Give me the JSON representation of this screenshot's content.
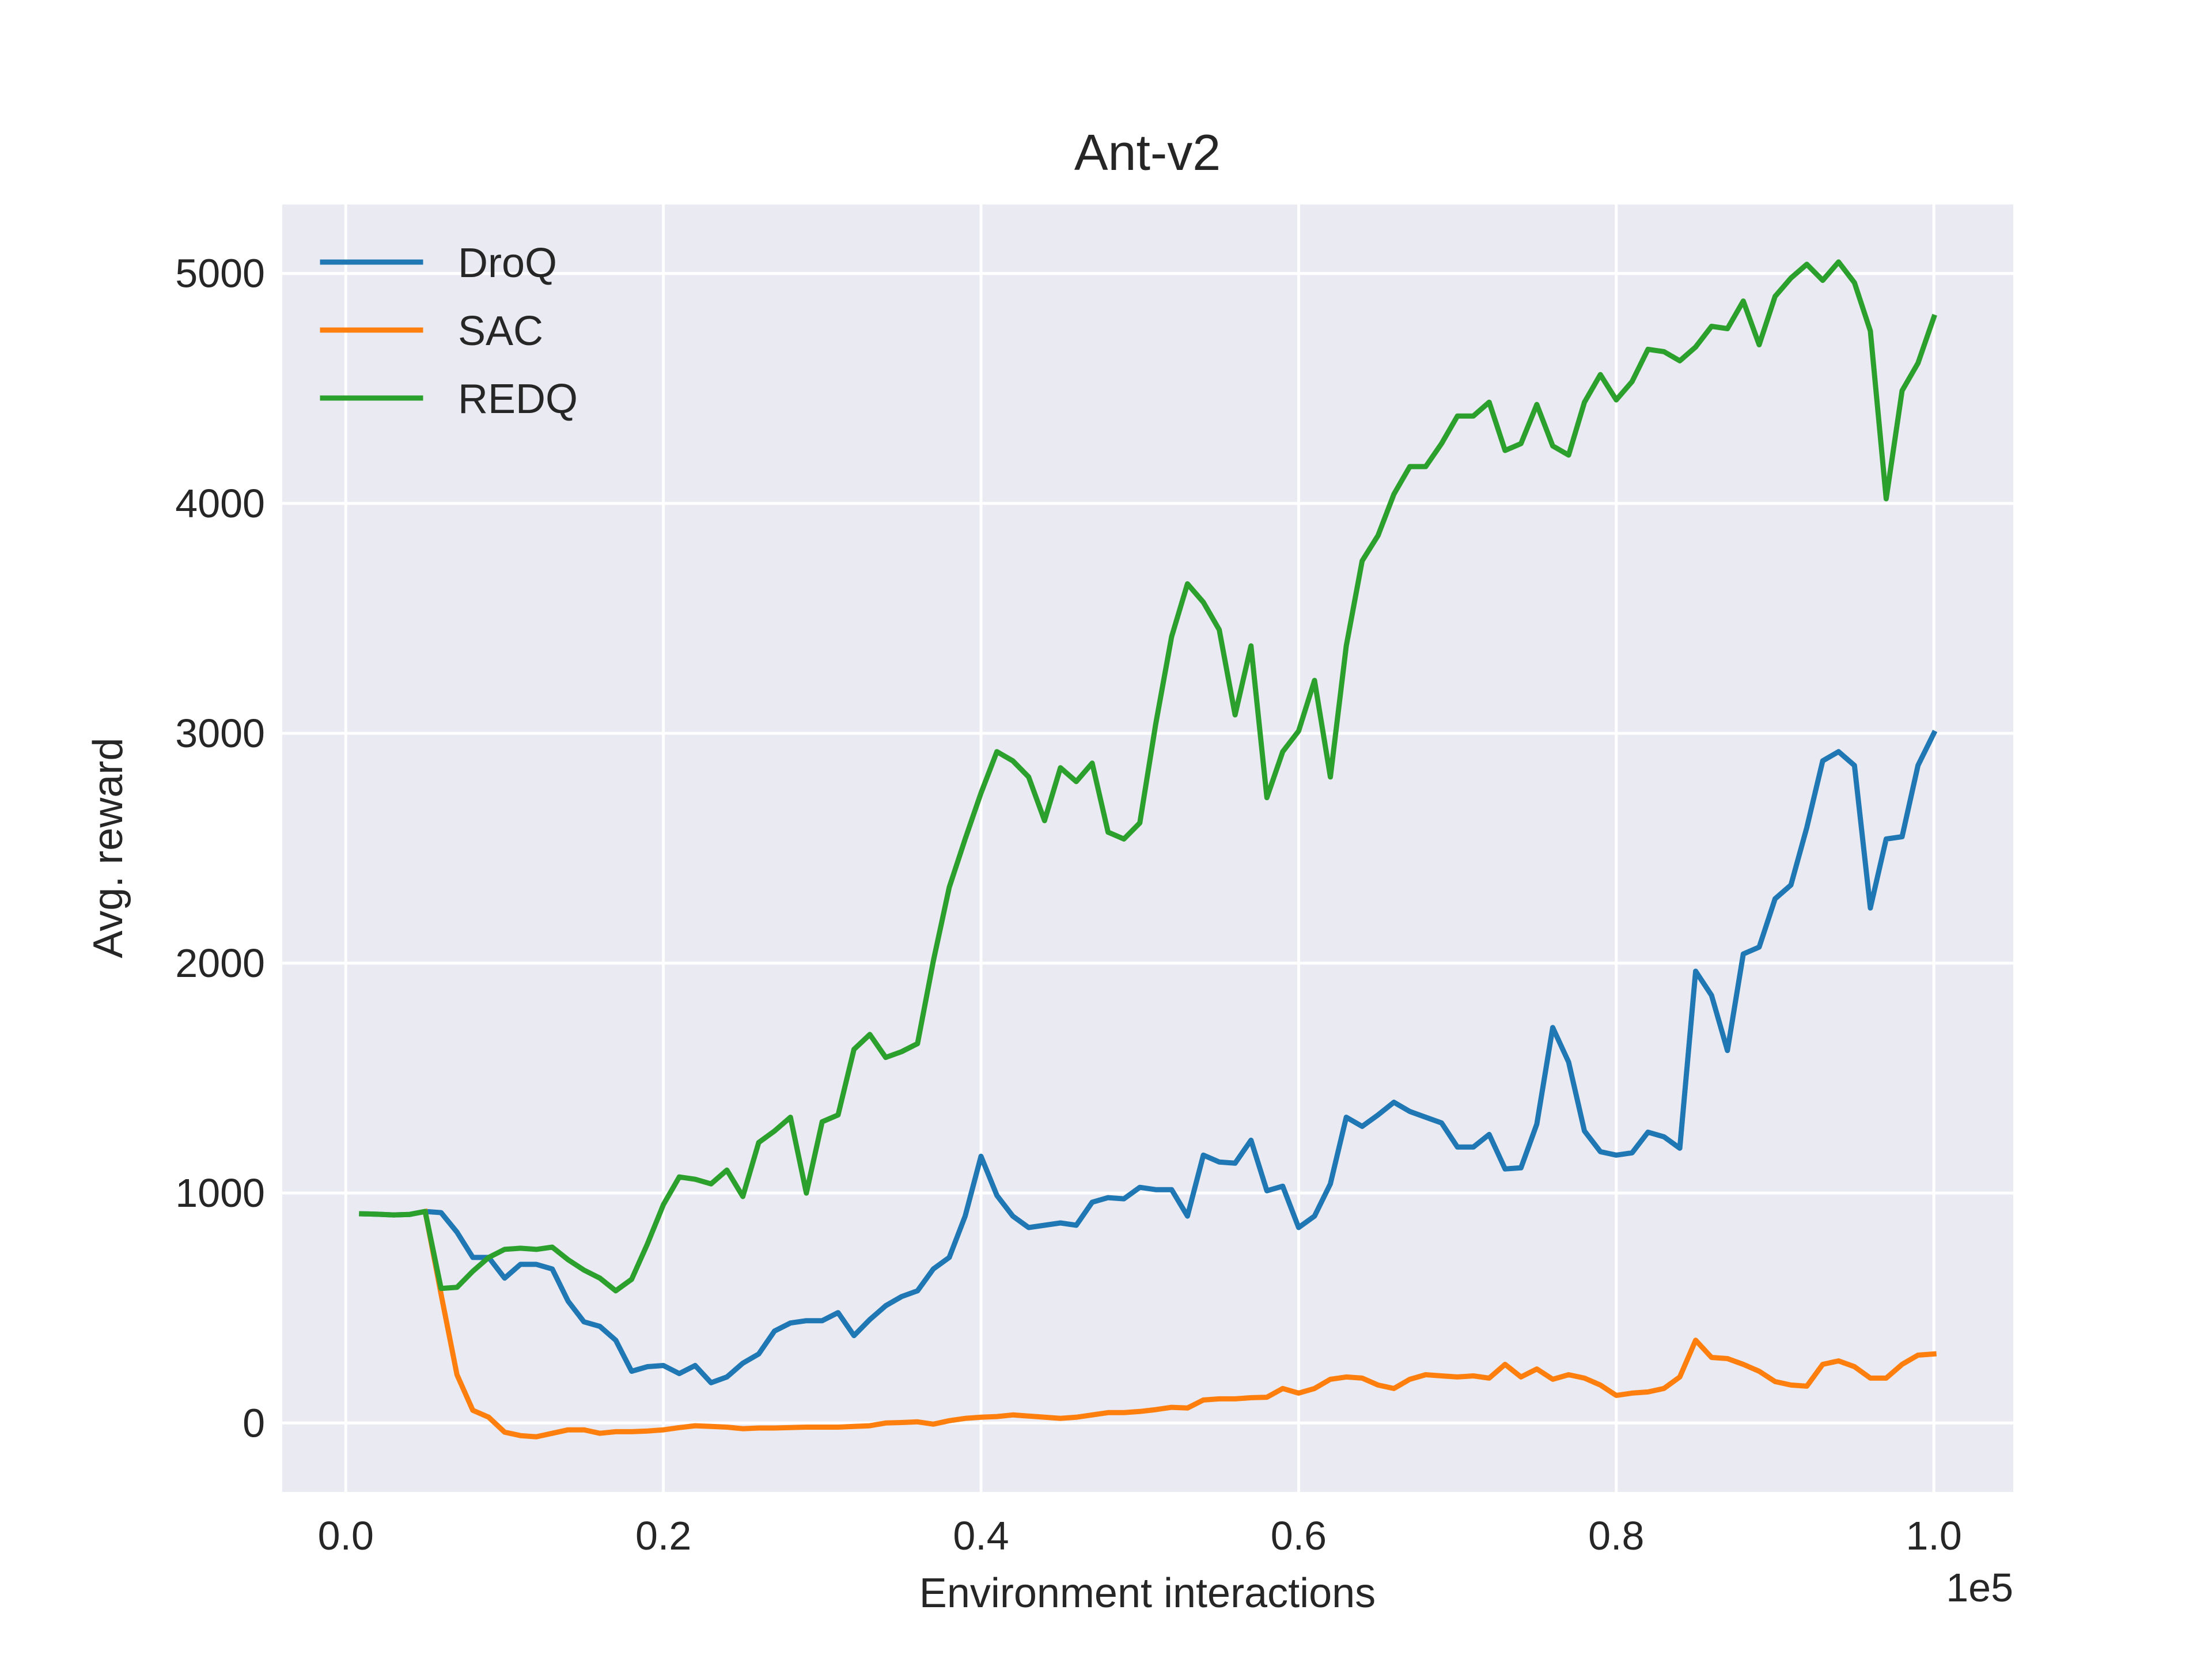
{
  "chart_data": {
    "type": "line",
    "title": "Ant-v2",
    "xlabel": "Environment interactions",
    "ylabel": "Avg. reward",
    "x_offset_label": "1e5",
    "xlim": [
      -0.04,
      1.05
    ],
    "ylim": [
      -300,
      5300
    ],
    "xticks": [
      0.0,
      0.2,
      0.4,
      0.6,
      0.8,
      1.0
    ],
    "xtick_labels": [
      "0.0",
      "0.2",
      "0.4",
      "0.6",
      "0.8",
      "1.0"
    ],
    "yticks": [
      0,
      1000,
      2000,
      3000,
      4000,
      5000
    ],
    "ytick_labels": [
      "0",
      "1000",
      "2000",
      "3000",
      "4000",
      "5000"
    ],
    "grid": true,
    "legend_position": "upper-left",
    "background_color": "#eaeaf2",
    "series": [
      {
        "name": "DroQ",
        "color": "#1f77b4",
        "points": [
          [
            0.01,
            910
          ],
          [
            0.02,
            908
          ],
          [
            0.03,
            905
          ],
          [
            0.04,
            907
          ],
          [
            0.05,
            920
          ],
          [
            0.06,
            915
          ],
          [
            0.07,
            830
          ],
          [
            0.08,
            720
          ],
          [
            0.09,
            720
          ],
          [
            0.1,
            630
          ],
          [
            0.11,
            690
          ],
          [
            0.12,
            690
          ],
          [
            0.13,
            670
          ],
          [
            0.14,
            530
          ],
          [
            0.15,
            440
          ],
          [
            0.16,
            420
          ],
          [
            0.17,
            360
          ],
          [
            0.18,
            225
          ],
          [
            0.19,
            245
          ],
          [
            0.2,
            250
          ],
          [
            0.21,
            215
          ],
          [
            0.22,
            250
          ],
          [
            0.23,
            175
          ],
          [
            0.24,
            200
          ],
          [
            0.25,
            260
          ],
          [
            0.26,
            300
          ],
          [
            0.27,
            400
          ],
          [
            0.28,
            435
          ],
          [
            0.29,
            445
          ],
          [
            0.3,
            445
          ],
          [
            0.31,
            480
          ],
          [
            0.32,
            380
          ],
          [
            0.33,
            450
          ],
          [
            0.34,
            510
          ],
          [
            0.35,
            550
          ],
          [
            0.36,
            575
          ],
          [
            0.37,
            670
          ],
          [
            0.38,
            720
          ],
          [
            0.39,
            900
          ],
          [
            0.4,
            1160
          ],
          [
            0.41,
            990
          ],
          [
            0.42,
            900
          ],
          [
            0.43,
            850
          ],
          [
            0.44,
            860
          ],
          [
            0.45,
            870
          ],
          [
            0.46,
            860
          ],
          [
            0.47,
            960
          ],
          [
            0.48,
            980
          ],
          [
            0.49,
            975
          ],
          [
            0.5,
            1025
          ],
          [
            0.51,
            1015
          ],
          [
            0.52,
            1015
          ],
          [
            0.53,
            900
          ],
          [
            0.54,
            1165
          ],
          [
            0.55,
            1135
          ],
          [
            0.56,
            1130
          ],
          [
            0.57,
            1230
          ],
          [
            0.58,
            1010
          ],
          [
            0.59,
            1030
          ],
          [
            0.6,
            850
          ],
          [
            0.61,
            900
          ],
          [
            0.62,
            1040
          ],
          [
            0.63,
            1330
          ],
          [
            0.64,
            1290
          ],
          [
            0.65,
            1340
          ],
          [
            0.66,
            1395
          ],
          [
            0.67,
            1355
          ],
          [
            0.68,
            1330
          ],
          [
            0.69,
            1305
          ],
          [
            0.7,
            1200
          ],
          [
            0.71,
            1200
          ],
          [
            0.72,
            1255
          ],
          [
            0.73,
            1105
          ],
          [
            0.74,
            1110
          ],
          [
            0.75,
            1300
          ],
          [
            0.76,
            1720
          ],
          [
            0.77,
            1570
          ],
          [
            0.78,
            1270
          ],
          [
            0.79,
            1180
          ],
          [
            0.8,
            1165
          ],
          [
            0.81,
            1175
          ],
          [
            0.82,
            1265
          ],
          [
            0.83,
            1245
          ],
          [
            0.84,
            1195
          ],
          [
            0.85,
            1965
          ],
          [
            0.86,
            1860
          ],
          [
            0.87,
            1620
          ],
          [
            0.88,
            2040
          ],
          [
            0.89,
            2070
          ],
          [
            0.9,
            2280
          ],
          [
            0.91,
            2340
          ],
          [
            0.92,
            2590
          ],
          [
            0.93,
            2880
          ],
          [
            0.94,
            2920
          ],
          [
            0.95,
            2860
          ],
          [
            0.96,
            2240
          ],
          [
            0.97,
            2540
          ],
          [
            0.98,
            2550
          ],
          [
            0.99,
            2860
          ],
          [
            1.0,
            3000
          ]
        ]
      },
      {
        "name": "SAC",
        "color": "#ff7f0e",
        "points": [
          [
            0.05,
            920
          ],
          [
            0.06,
            560
          ],
          [
            0.07,
            210
          ],
          [
            0.08,
            55
          ],
          [
            0.09,
            25
          ],
          [
            0.1,
            -40
          ],
          [
            0.11,
            -55
          ],
          [
            0.12,
            -60
          ],
          [
            0.13,
            -45
          ],
          [
            0.14,
            -30
          ],
          [
            0.15,
            -30
          ],
          [
            0.16,
            -45
          ],
          [
            0.17,
            -38
          ],
          [
            0.18,
            -38
          ],
          [
            0.19,
            -35
          ],
          [
            0.2,
            -30
          ],
          [
            0.21,
            -20
          ],
          [
            0.22,
            -12
          ],
          [
            0.23,
            -15
          ],
          [
            0.24,
            -18
          ],
          [
            0.25,
            -25
          ],
          [
            0.26,
            -22
          ],
          [
            0.27,
            -22
          ],
          [
            0.28,
            -20
          ],
          [
            0.29,
            -18
          ],
          [
            0.3,
            -18
          ],
          [
            0.31,
            -18
          ],
          [
            0.32,
            -15
          ],
          [
            0.33,
            -12
          ],
          [
            0.34,
            0
          ],
          [
            0.35,
            2
          ],
          [
            0.36,
            5
          ],
          [
            0.37,
            -5
          ],
          [
            0.38,
            10
          ],
          [
            0.39,
            20
          ],
          [
            0.4,
            25
          ],
          [
            0.41,
            28
          ],
          [
            0.42,
            35
          ],
          [
            0.43,
            30
          ],
          [
            0.44,
            25
          ],
          [
            0.45,
            20
          ],
          [
            0.46,
            25
          ],
          [
            0.47,
            35
          ],
          [
            0.48,
            45
          ],
          [
            0.49,
            45
          ],
          [
            0.5,
            50
          ],
          [
            0.51,
            58
          ],
          [
            0.52,
            68
          ],
          [
            0.53,
            65
          ],
          [
            0.54,
            100
          ],
          [
            0.55,
            105
          ],
          [
            0.56,
            105
          ],
          [
            0.57,
            110
          ],
          [
            0.58,
            112
          ],
          [
            0.59,
            150
          ],
          [
            0.6,
            130
          ],
          [
            0.61,
            150
          ],
          [
            0.62,
            190
          ],
          [
            0.63,
            200
          ],
          [
            0.64,
            195
          ],
          [
            0.65,
            165
          ],
          [
            0.66,
            150
          ],
          [
            0.67,
            190
          ],
          [
            0.68,
            210
          ],
          [
            0.69,
            205
          ],
          [
            0.7,
            200
          ],
          [
            0.71,
            205
          ],
          [
            0.72,
            195
          ],
          [
            0.73,
            255
          ],
          [
            0.74,
            200
          ],
          [
            0.75,
            235
          ],
          [
            0.76,
            190
          ],
          [
            0.77,
            210
          ],
          [
            0.78,
            195
          ],
          [
            0.79,
            165
          ],
          [
            0.8,
            120
          ],
          [
            0.81,
            130
          ],
          [
            0.82,
            135
          ],
          [
            0.83,
            150
          ],
          [
            0.84,
            200
          ],
          [
            0.85,
            360
          ],
          [
            0.86,
            285
          ],
          [
            0.87,
            280
          ],
          [
            0.88,
            255
          ],
          [
            0.89,
            225
          ],
          [
            0.9,
            180
          ],
          [
            0.91,
            165
          ],
          [
            0.92,
            160
          ],
          [
            0.93,
            255
          ],
          [
            0.94,
            270
          ],
          [
            0.95,
            245
          ],
          [
            0.96,
            195
          ],
          [
            0.97,
            195
          ],
          [
            0.98,
            255
          ],
          [
            0.99,
            295
          ],
          [
            1.0,
            300
          ]
        ]
      },
      {
        "name": "REDQ",
        "color": "#2ca02c",
        "points": [
          [
            0.01,
            910
          ],
          [
            0.02,
            908
          ],
          [
            0.03,
            905
          ],
          [
            0.04,
            907
          ],
          [
            0.05,
            920
          ],
          [
            0.06,
            585
          ],
          [
            0.07,
            590
          ],
          [
            0.08,
            660
          ],
          [
            0.09,
            720
          ],
          [
            0.1,
            755
          ],
          [
            0.11,
            760
          ],
          [
            0.12,
            755
          ],
          [
            0.13,
            765
          ],
          [
            0.14,
            710
          ],
          [
            0.15,
            665
          ],
          [
            0.16,
            630
          ],
          [
            0.17,
            575
          ],
          [
            0.18,
            625
          ],
          [
            0.19,
            780
          ],
          [
            0.2,
            950
          ],
          [
            0.21,
            1070
          ],
          [
            0.22,
            1060
          ],
          [
            0.23,
            1040
          ],
          [
            0.24,
            1100
          ],
          [
            0.25,
            985
          ],
          [
            0.26,
            1220
          ],
          [
            0.27,
            1270
          ],
          [
            0.28,
            1330
          ],
          [
            0.29,
            1000
          ],
          [
            0.3,
            1310
          ],
          [
            0.31,
            1340
          ],
          [
            0.32,
            1625
          ],
          [
            0.33,
            1690
          ],
          [
            0.34,
            1590
          ],
          [
            0.35,
            1615
          ],
          [
            0.36,
            1650
          ],
          [
            0.37,
            2010
          ],
          [
            0.38,
            2330
          ],
          [
            0.39,
            2540
          ],
          [
            0.4,
            2740
          ],
          [
            0.41,
            2920
          ],
          [
            0.42,
            2880
          ],
          [
            0.43,
            2810
          ],
          [
            0.44,
            2620
          ],
          [
            0.45,
            2850
          ],
          [
            0.46,
            2790
          ],
          [
            0.47,
            2870
          ],
          [
            0.48,
            2570
          ],
          [
            0.49,
            2540
          ],
          [
            0.5,
            2610
          ],
          [
            0.51,
            3040
          ],
          [
            0.52,
            3420
          ],
          [
            0.53,
            3650
          ],
          [
            0.54,
            3570
          ],
          [
            0.55,
            3450
          ],
          [
            0.56,
            3080
          ],
          [
            0.57,
            3380
          ],
          [
            0.58,
            2720
          ],
          [
            0.59,
            2920
          ],
          [
            0.6,
            3010
          ],
          [
            0.61,
            3230
          ],
          [
            0.62,
            2810
          ],
          [
            0.63,
            3380
          ],
          [
            0.64,
            3750
          ],
          [
            0.65,
            3860
          ],
          [
            0.66,
            4040
          ],
          [
            0.67,
            4160
          ],
          [
            0.68,
            4160
          ],
          [
            0.69,
            4260
          ],
          [
            0.7,
            4380
          ],
          [
            0.71,
            4380
          ],
          [
            0.72,
            4440
          ],
          [
            0.73,
            4230
          ],
          [
            0.74,
            4260
          ],
          [
            0.75,
            4430
          ],
          [
            0.76,
            4250
          ],
          [
            0.77,
            4210
          ],
          [
            0.78,
            4440
          ],
          [
            0.79,
            4560
          ],
          [
            0.8,
            4450
          ],
          [
            0.81,
            4530
          ],
          [
            0.82,
            4670
          ],
          [
            0.83,
            4660
          ],
          [
            0.84,
            4620
          ],
          [
            0.85,
            4680
          ],
          [
            0.86,
            4770
          ],
          [
            0.87,
            4760
          ],
          [
            0.88,
            4880
          ],
          [
            0.89,
            4690
          ],
          [
            0.9,
            4900
          ],
          [
            0.91,
            4980
          ],
          [
            0.92,
            5040
          ],
          [
            0.93,
            4970
          ],
          [
            0.94,
            5050
          ],
          [
            0.95,
            4960
          ],
          [
            0.96,
            4750
          ],
          [
            0.97,
            4020
          ],
          [
            0.98,
            4490
          ],
          [
            0.99,
            4610
          ],
          [
            1.0,
            4810
          ]
        ]
      }
    ]
  }
}
